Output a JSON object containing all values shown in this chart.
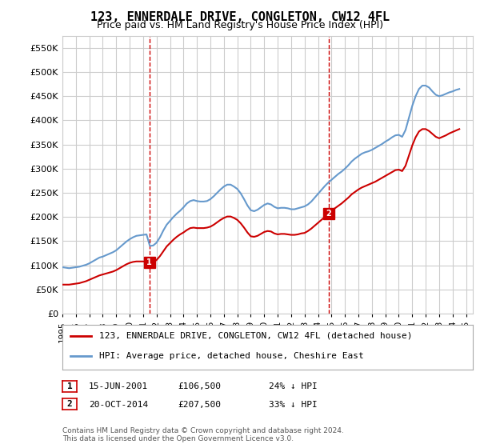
{
  "title": "123, ENNERDALE DRIVE, CONGLETON, CW12 4FL",
  "subtitle": "Price paid vs. HM Land Registry's House Price Index (HPI)",
  "ylabel_format": "£{0}K",
  "ylim": [
    0,
    575000
  ],
  "yticks": [
    0,
    50000,
    100000,
    150000,
    200000,
    250000,
    300000,
    350000,
    400000,
    450000,
    500000,
    550000
  ],
  "xlim_start": 1995.0,
  "xlim_end": 2025.5,
  "legend_line1": "123, ENNERDALE DRIVE, CONGLETON, CW12 4FL (detached house)",
  "legend_line2": "HPI: Average price, detached house, Cheshire East",
  "line1_color": "#cc0000",
  "line2_color": "#6699cc",
  "vline_color": "#cc0000",
  "marker1_x": 2001.458,
  "marker1_y": 106500,
  "marker1_label": "1",
  "marker2_x": 2014.792,
  "marker2_y": 207500,
  "marker2_label": "2",
  "annotation1": "1    15-JUN-2001    £106,500    24% ↓ HPI",
  "annotation2": "2    20-OCT-2014    £207,500    33% ↓ HPI",
  "footer": "Contains HM Land Registry data © Crown copyright and database right 2024.\nThis data is licensed under the Open Government Licence v3.0.",
  "background_color": "#ffffff",
  "grid_color": "#cccccc",
  "hpi_data_x": [
    1995.0,
    1995.25,
    1995.5,
    1995.75,
    1996.0,
    1996.25,
    1996.5,
    1996.75,
    1997.0,
    1997.25,
    1997.5,
    1997.75,
    1998.0,
    1998.25,
    1998.5,
    1998.75,
    1999.0,
    1999.25,
    1999.5,
    1999.75,
    2000.0,
    2000.25,
    2000.5,
    2000.75,
    2001.0,
    2001.25,
    2001.5,
    2001.75,
    2002.0,
    2002.25,
    2002.5,
    2002.75,
    2003.0,
    2003.25,
    2003.5,
    2003.75,
    2004.0,
    2004.25,
    2004.5,
    2004.75,
    2005.0,
    2005.25,
    2005.5,
    2005.75,
    2006.0,
    2006.25,
    2006.5,
    2006.75,
    2007.0,
    2007.25,
    2007.5,
    2007.75,
    2008.0,
    2008.25,
    2008.5,
    2008.75,
    2009.0,
    2009.25,
    2009.5,
    2009.75,
    2010.0,
    2010.25,
    2010.5,
    2010.75,
    2011.0,
    2011.25,
    2011.5,
    2011.75,
    2012.0,
    2012.25,
    2012.5,
    2012.75,
    2013.0,
    2013.25,
    2013.5,
    2013.75,
    2014.0,
    2014.25,
    2014.5,
    2014.75,
    2015.0,
    2015.25,
    2015.5,
    2015.75,
    2016.0,
    2016.25,
    2016.5,
    2016.75,
    2017.0,
    2017.25,
    2017.5,
    2017.75,
    2018.0,
    2018.25,
    2018.5,
    2018.75,
    2019.0,
    2019.25,
    2019.5,
    2019.75,
    2020.0,
    2020.25,
    2020.5,
    2020.75,
    2021.0,
    2021.25,
    2021.5,
    2021.75,
    2022.0,
    2022.25,
    2022.5,
    2022.75,
    2023.0,
    2023.25,
    2023.5,
    2023.75,
    2024.0,
    2024.25,
    2024.5
  ],
  "hpi_data_y": [
    96000,
    95000,
    94000,
    95000,
    96000,
    97000,
    99000,
    101000,
    104000,
    108000,
    112000,
    116000,
    118000,
    121000,
    124000,
    127000,
    131000,
    137000,
    143000,
    149000,
    154000,
    158000,
    161000,
    162000,
    163000,
    164000,
    140000,
    141000,
    147000,
    158000,
    172000,
    184000,
    192000,
    200000,
    207000,
    213000,
    220000,
    228000,
    233000,
    235000,
    233000,
    232000,
    232000,
    233000,
    237000,
    243000,
    250000,
    257000,
    263000,
    267000,
    267000,
    263000,
    258000,
    249000,
    237000,
    224000,
    214000,
    212000,
    215000,
    220000,
    225000,
    228000,
    226000,
    221000,
    218000,
    219000,
    219000,
    218000,
    216000,
    216000,
    218000,
    220000,
    222000,
    226000,
    232000,
    240000,
    248000,
    256000,
    264000,
    271000,
    277000,
    283000,
    289000,
    294000,
    300000,
    307000,
    315000,
    321000,
    326000,
    331000,
    334000,
    336000,
    339000,
    343000,
    347000,
    351000,
    356000,
    360000,
    365000,
    369000,
    370000,
    366000,
    380000,
    405000,
    430000,
    450000,
    465000,
    472000,
    472000,
    468000,
    460000,
    453000,
    450000,
    452000,
    455000,
    458000,
    460000,
    463000,
    465000
  ],
  "pp_data_x": [
    1995.0,
    1995.25,
    1995.5,
    1995.75,
    1996.0,
    1996.25,
    1996.5,
    1996.75,
    1997.0,
    1997.25,
    1997.5,
    1997.75,
    1998.0,
    1998.25,
    1998.5,
    1998.75,
    1999.0,
    1999.25,
    1999.5,
    1999.75,
    2000.0,
    2000.25,
    2000.5,
    2000.75,
    2001.0,
    2001.25,
    2001.5,
    2001.75,
    2002.0,
    2002.25,
    2002.5,
    2002.75,
    2003.0,
    2003.25,
    2003.5,
    2003.75,
    2004.0,
    2004.25,
    2004.5,
    2004.75,
    2005.0,
    2005.25,
    2005.5,
    2005.75,
    2006.0,
    2006.25,
    2006.5,
    2006.75,
    2007.0,
    2007.25,
    2007.5,
    2007.75,
    2008.0,
    2008.25,
    2008.5,
    2008.75,
    2009.0,
    2009.25,
    2009.5,
    2009.75,
    2010.0,
    2010.25,
    2010.5,
    2010.75,
    2011.0,
    2011.25,
    2011.5,
    2011.75,
    2012.0,
    2012.25,
    2012.5,
    2012.75,
    2013.0,
    2013.25,
    2013.5,
    2013.75,
    2014.0,
    2014.25,
    2014.5,
    2014.75,
    2015.0,
    2015.25,
    2015.5,
    2015.75,
    2016.0,
    2016.25,
    2016.5,
    2016.75,
    2017.0,
    2017.25,
    2017.5,
    2017.75,
    2018.0,
    2018.25,
    2018.5,
    2018.75,
    2019.0,
    2019.25,
    2019.5,
    2019.75,
    2020.0,
    2020.25,
    2020.5,
    2020.75,
    2021.0,
    2021.25,
    2021.5,
    2021.75,
    2022.0,
    2022.25,
    2022.5,
    2022.75,
    2023.0,
    2023.25,
    2023.5,
    2023.75,
    2024.0,
    2024.25,
    2024.5
  ],
  "pp_data_y": [
    60000,
    60000,
    60000,
    61000,
    62000,
    63000,
    65000,
    67000,
    70000,
    73000,
    76000,
    79000,
    81000,
    83000,
    85000,
    87000,
    90000,
    94000,
    98000,
    102000,
    105000,
    107000,
    108000,
    108000,
    108000,
    107000,
    106500,
    106500,
    111000,
    119000,
    129000,
    139000,
    146000,
    153000,
    159000,
    164000,
    168000,
    173000,
    177000,
    178000,
    177000,
    177000,
    177000,
    178000,
    180000,
    184000,
    189000,
    194000,
    198000,
    201000,
    201000,
    198000,
    194000,
    187000,
    178000,
    168000,
    160000,
    159000,
    161000,
    165000,
    169000,
    171000,
    170000,
    166000,
    164000,
    165000,
    165000,
    164000,
    163000,
    163000,
    164000,
    166000,
    167000,
    171000,
    176000,
    182000,
    188000,
    194000,
    200000,
    207500,
    213000,
    218000,
    223000,
    228000,
    234000,
    240000,
    247000,
    252000,
    257000,
    261000,
    264000,
    267000,
    270000,
    273000,
    277000,
    281000,
    285000,
    289000,
    293000,
    297000,
    298000,
    295000,
    306000,
    327000,
    348000,
    365000,
    377000,
    382000,
    382000,
    378000,
    372000,
    366000,
    363000,
    366000,
    369000,
    373000,
    376000,
    379000,
    382000
  ]
}
